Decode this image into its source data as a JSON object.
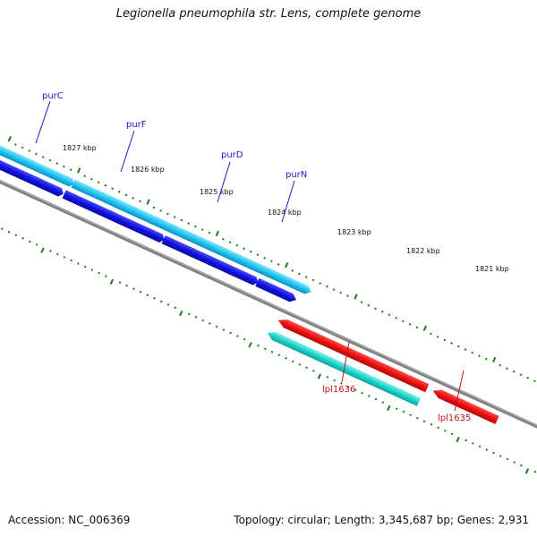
{
  "title": "Legionella pneumophila str. Lens, complete genome",
  "footer": {
    "accession": "Accession: NC_006369",
    "summary": "Topology: circular; Length: 3,345,687 bp; Genes: 2,931"
  },
  "colors": {
    "backbone": "#808080",
    "tick": "#1a7a1a",
    "fwd_label": "#1a1acc",
    "rev_label": "#cc1111",
    "gene_cyan": "#22c4f0",
    "gene_blue": "#1212e0",
    "gene_red": "#ee1111",
    "gene_teal": "#1ed4cc"
  },
  "scale": {
    "labels": [
      "1827 kbp",
      "1826 kbp",
      "1825 kbp",
      "1824 kbp",
      "1823 kbp",
      "1822 kbp",
      "1821 kbp"
    ]
  },
  "genes": {
    "labels": {
      "purC": "purC",
      "purF": "purF",
      "purD": "purD",
      "purN": "purN",
      "lpl1636": "lpl1636",
      "lpl1635": "lpl1635"
    }
  }
}
